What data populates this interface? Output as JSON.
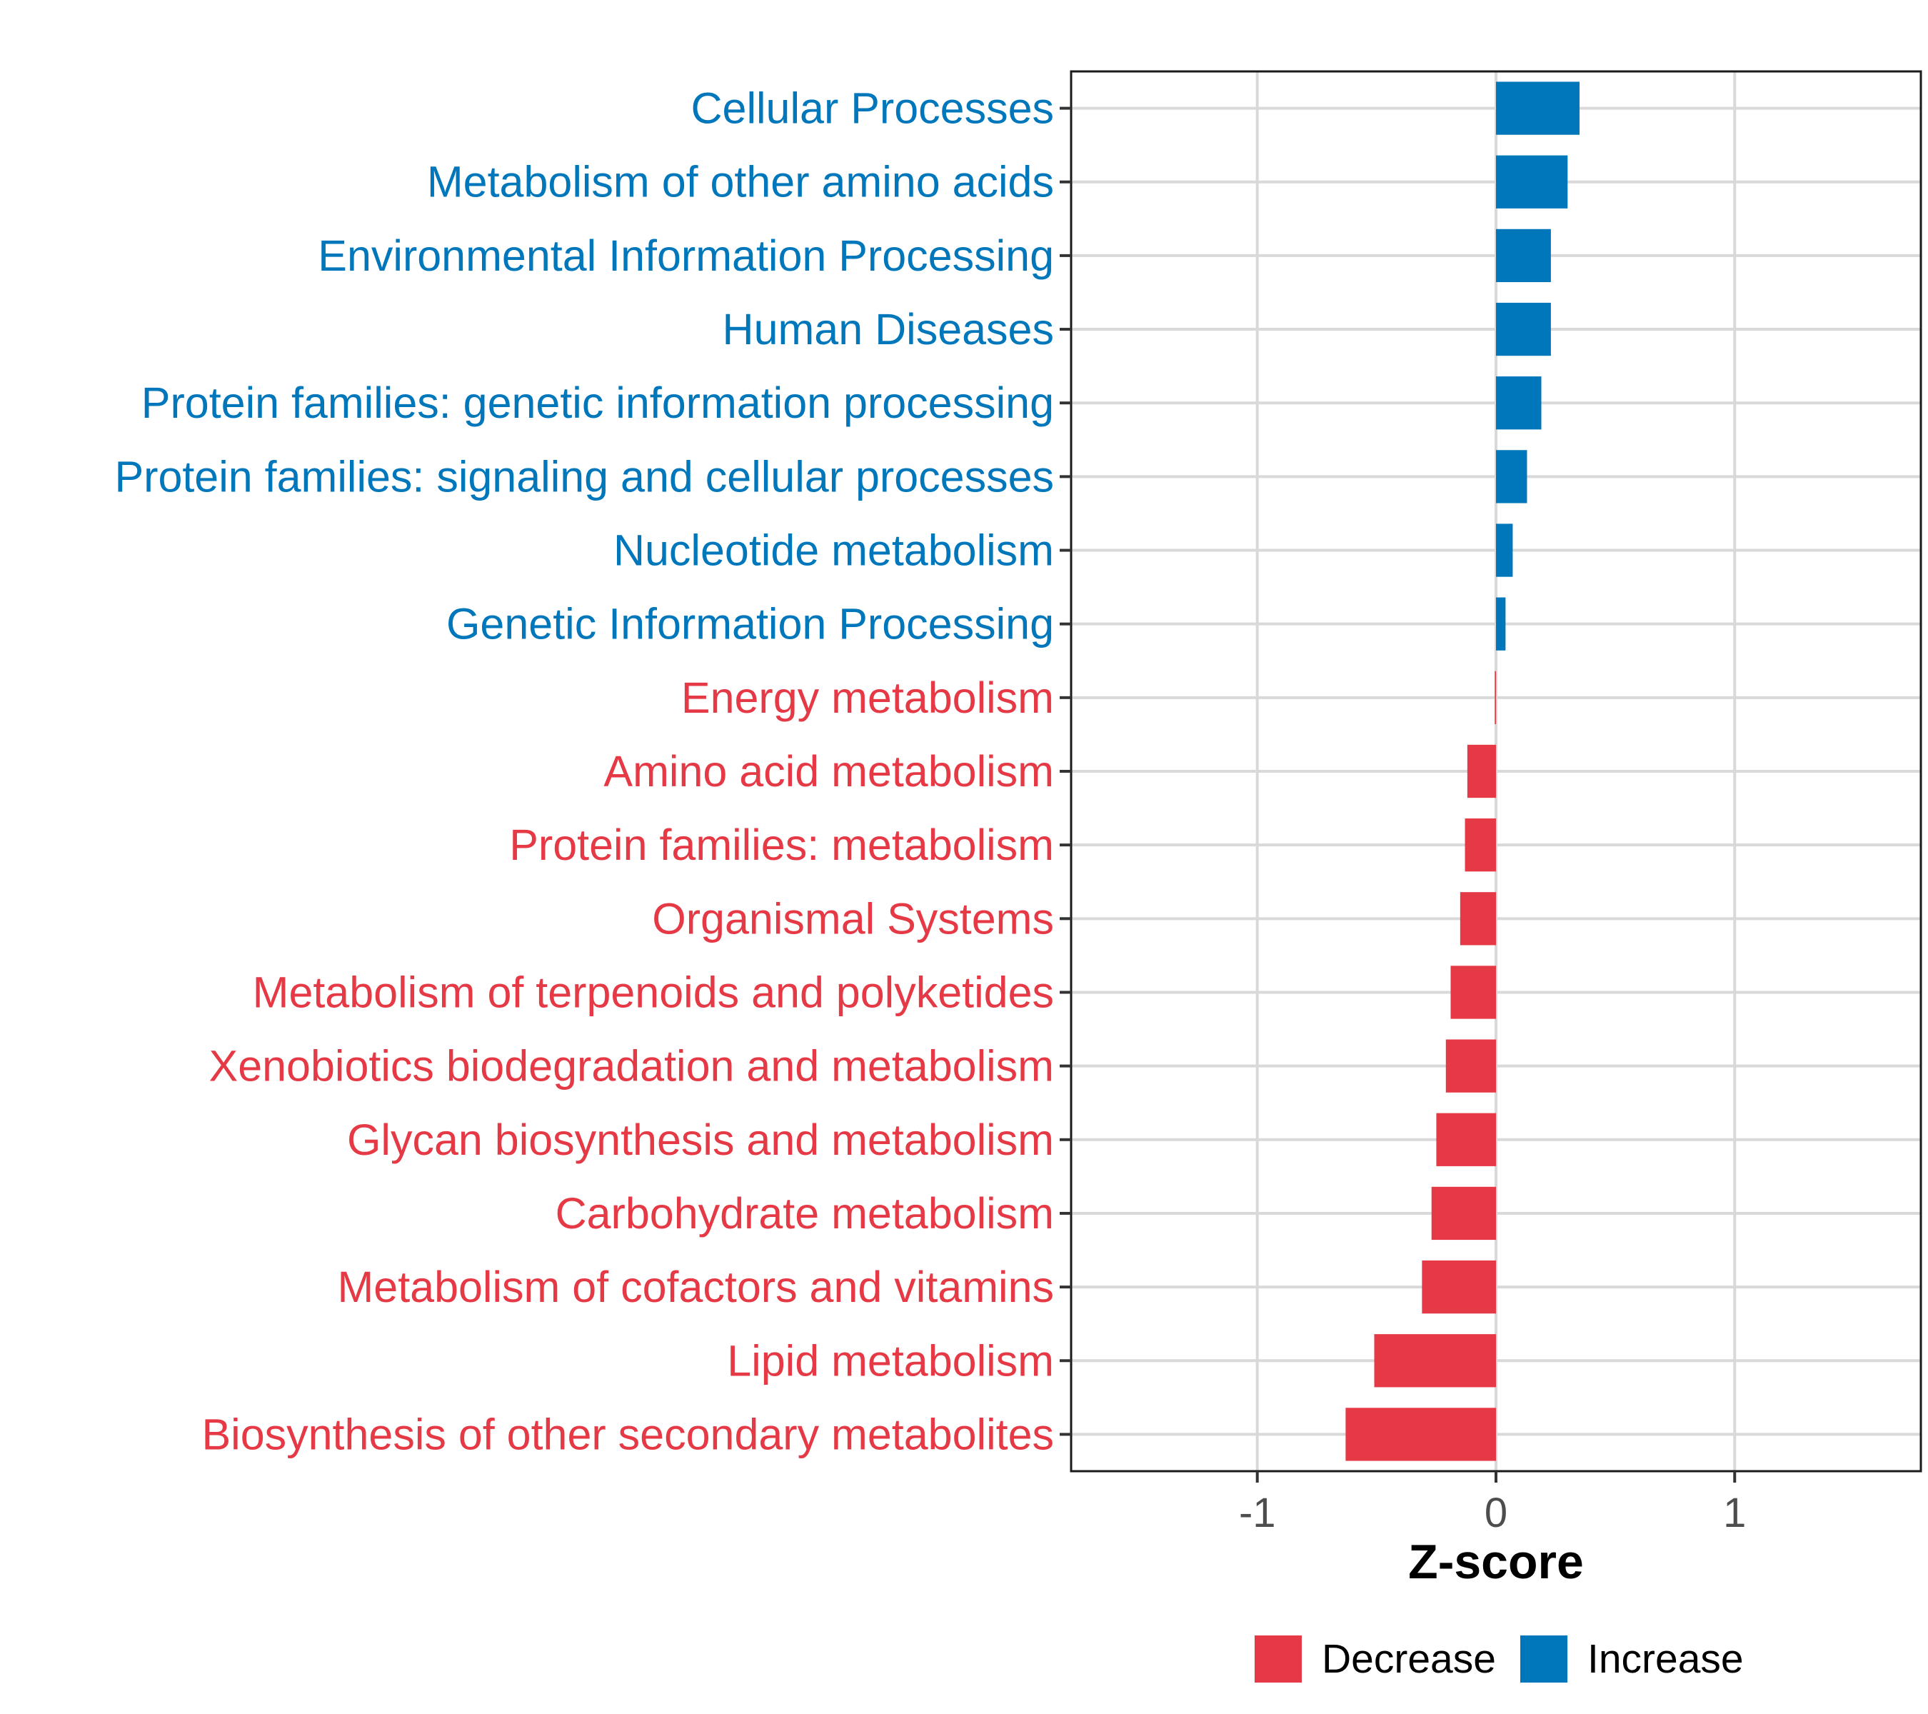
{
  "chart_data": {
    "type": "bar",
    "orientation": "horizontal",
    "title": "",
    "xlabel": "Z-score",
    "ylabel": "",
    "xlim": [
      -1.78,
      1.78
    ],
    "xticks": [
      {
        "value": -1,
        "label": "-1"
      },
      {
        "value": 0,
        "label": "0"
      },
      {
        "value": 1,
        "label": "1"
      }
    ],
    "grid": true,
    "legend_position": "bottom",
    "colors": {
      "Decrease": "#e63946",
      "Increase": "#0077bb"
    },
    "legend": [
      {
        "name": "Decrease",
        "color": "#e63946"
      },
      {
        "name": "Increase",
        "color": "#0077bb"
      }
    ],
    "bars": [
      {
        "category": "Cellular Processes",
        "value": 0.35,
        "group": "Increase"
      },
      {
        "category": "Metabolism of other amino acids",
        "value": 0.3,
        "group": "Increase"
      },
      {
        "category": "Environmental Information Processing",
        "value": 0.23,
        "group": "Increase"
      },
      {
        "category": "Human Diseases",
        "value": 0.23,
        "group": "Increase"
      },
      {
        "category": "Protein families: genetic information processing",
        "value": 0.19,
        "group": "Increase"
      },
      {
        "category": "Protein families: signaling and cellular processes",
        "value": 0.13,
        "group": "Increase"
      },
      {
        "category": "Nucleotide metabolism",
        "value": 0.07,
        "group": "Increase"
      },
      {
        "category": "Genetic Information Processing",
        "value": 0.04,
        "group": "Increase"
      },
      {
        "category": "Energy metabolism",
        "value": -0.005,
        "group": "Decrease"
      },
      {
        "category": "Amino acid metabolism",
        "value": -0.12,
        "group": "Decrease"
      },
      {
        "category": "Protein families: metabolism",
        "value": -0.13,
        "group": "Decrease"
      },
      {
        "category": "Organismal Systems",
        "value": -0.15,
        "group": "Decrease"
      },
      {
        "category": "Metabolism of terpenoids and polyketides",
        "value": -0.19,
        "group": "Decrease"
      },
      {
        "category": "Xenobiotics biodegradation and metabolism",
        "value": -0.21,
        "group": "Decrease"
      },
      {
        "category": "Glycan biosynthesis and metabolism",
        "value": -0.25,
        "group": "Decrease"
      },
      {
        "category": "Carbohydrate metabolism",
        "value": -0.27,
        "group": "Decrease"
      },
      {
        "category": "Metabolism of cofactors and vitamins",
        "value": -0.31,
        "group": "Decrease"
      },
      {
        "category": "Lipid metabolism",
        "value": -0.51,
        "group": "Decrease"
      },
      {
        "category": "Biosynthesis of other secondary metabolites",
        "value": -0.63,
        "group": "Decrease"
      }
    ]
  }
}
